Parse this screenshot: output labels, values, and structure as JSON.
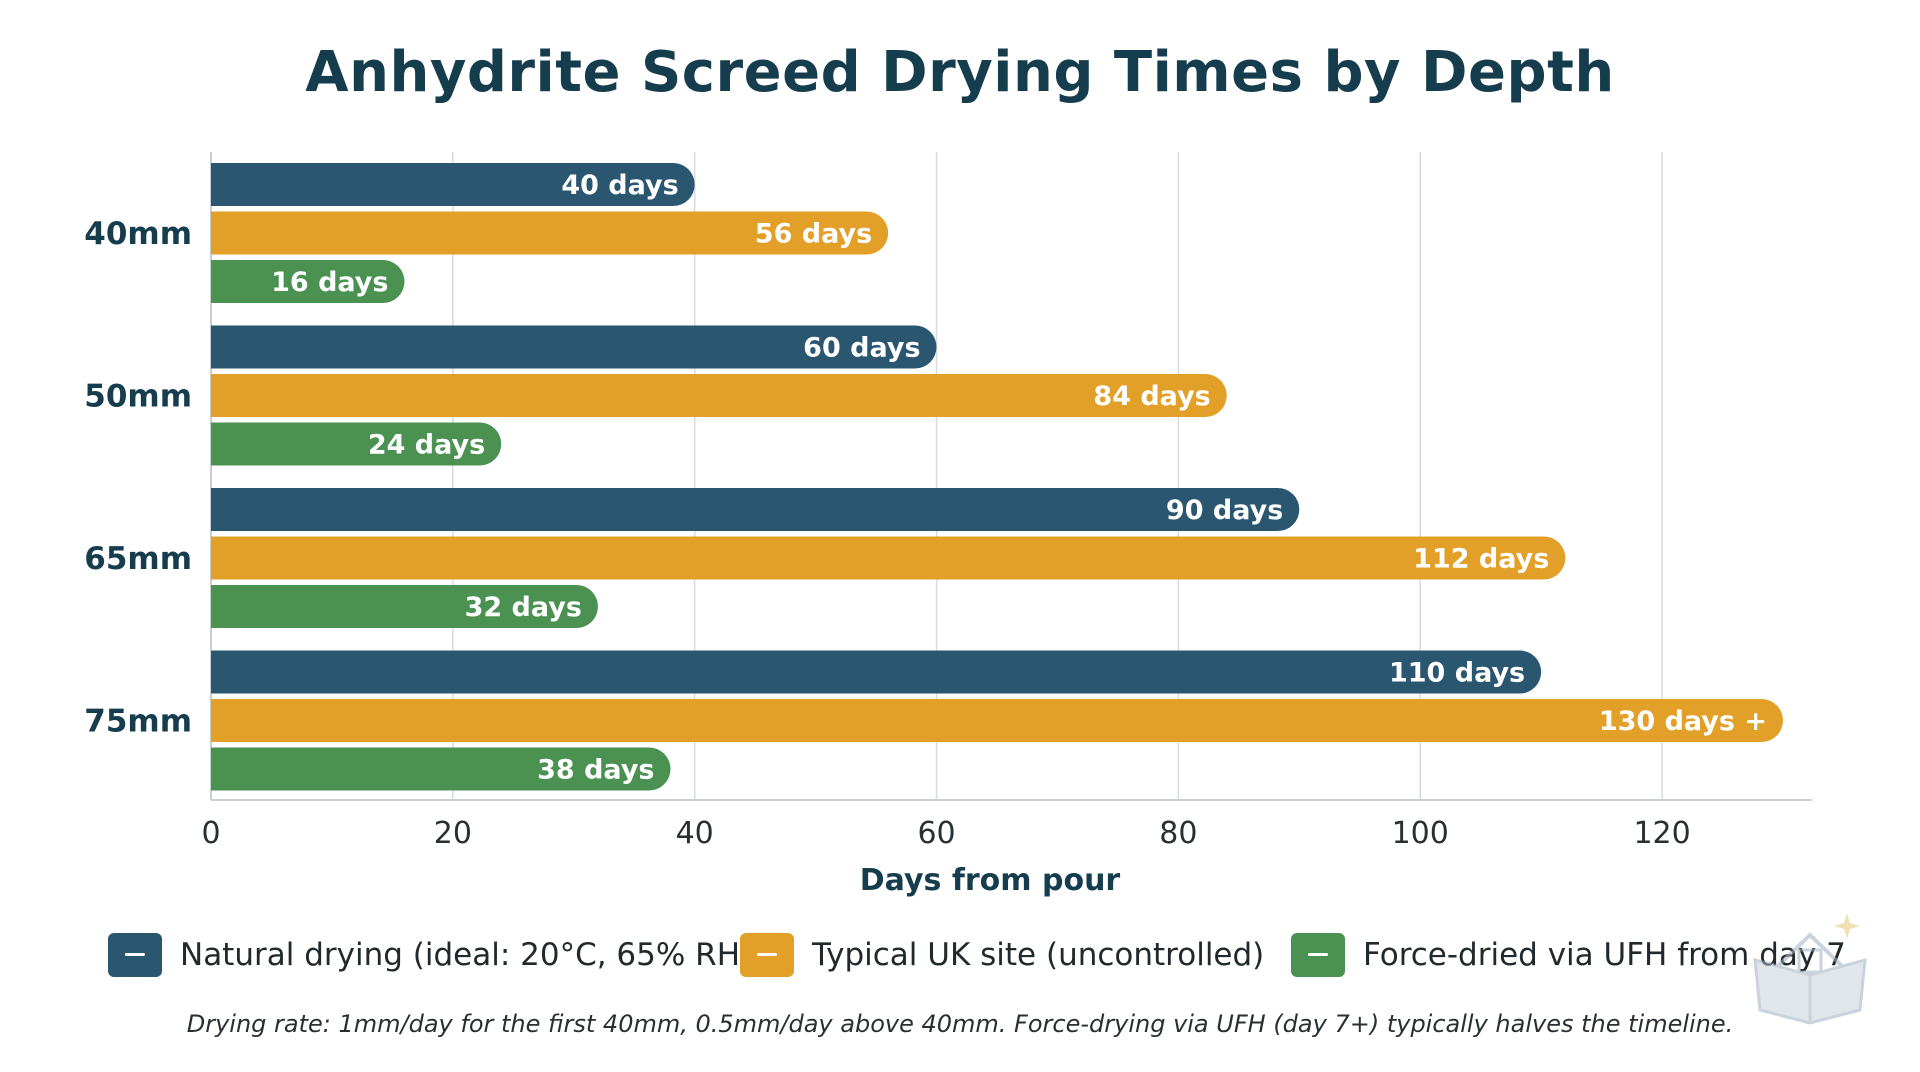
{
  "chart_data": {
    "type": "bar",
    "orientation": "horizontal",
    "title": "Anhydrite Screed Drying Times by Depth",
    "xlabel": "Days from pour",
    "ylabel": "",
    "categories": [
      "40mm",
      "50mm",
      "65mm",
      "75mm"
    ],
    "series": [
      {
        "name": "Natural drying (ideal: 20°C, 65% RH)",
        "color": "#2b5670",
        "values": [
          40,
          60,
          90,
          110
        ],
        "labels": [
          "40 days",
          "60 days",
          "90 days",
          "110 days"
        ]
      },
      {
        "name": "Typical UK site (uncontrolled)",
        "color": "#e3a028",
        "values": [
          56,
          84,
          112,
          130
        ],
        "labels": [
          "56 days",
          "84 days",
          "112 days",
          "130 days +"
        ]
      },
      {
        "name": "Force-dried via UFH from day 7",
        "color": "#4a9152",
        "values": [
          16,
          24,
          32,
          38
        ],
        "labels": [
          "16 days",
          "24 days",
          "32 days",
          "38 days"
        ]
      }
    ],
    "xlim": [
      0,
      130
    ],
    "xticks": [
      0,
      20,
      40,
      60,
      80,
      100,
      120
    ],
    "grid": "vertical",
    "legend_position": "bottom"
  },
  "footnote": "Drying rate: 1mm/day for the first 40mm, 0.5mm/day above 40mm. Force-drying via UFH (day 7+) typically halves the timeline.",
  "watermark": {
    "icon": "book-house-logo-icon"
  }
}
